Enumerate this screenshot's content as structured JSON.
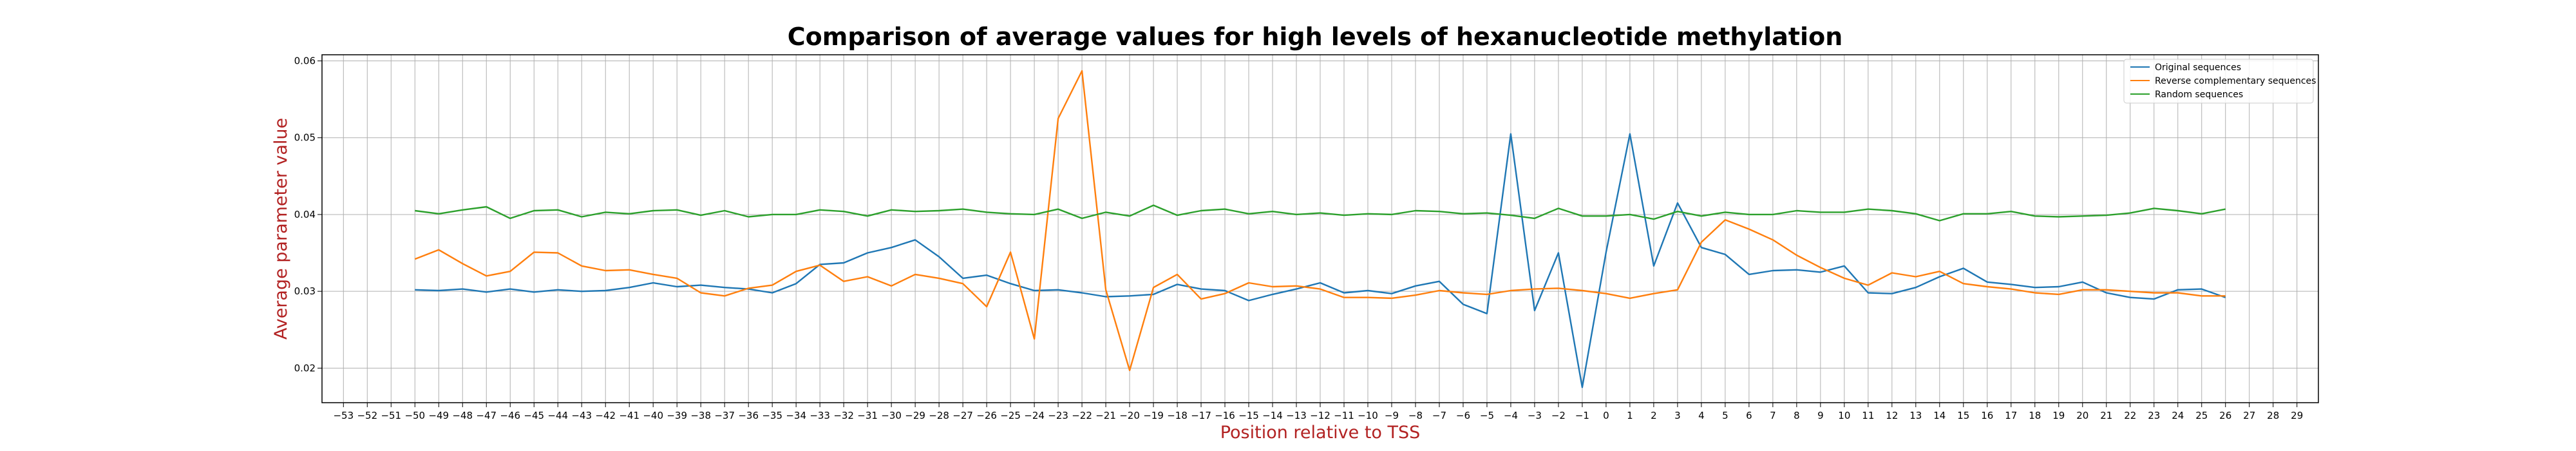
{
  "chart_data": {
    "type": "line",
    "title": "Comparison of average values for high levels of hexanucleotide methylation",
    "xlabel": "Position relative to TSS",
    "ylabel": "Average parameter value",
    "xlim": [
      -53.9,
      29.9
    ],
    "ylim": [
      0.0155,
      0.0608
    ],
    "x_ticks": [
      -53,
      -52,
      -51,
      -50,
      -49,
      -48,
      -47,
      -46,
      -45,
      -44,
      -43,
      -42,
      -41,
      -40,
      -39,
      -38,
      -37,
      -36,
      -35,
      -34,
      -33,
      -32,
      -31,
      -30,
      -29,
      -28,
      -27,
      -26,
      -25,
      -24,
      -23,
      -22,
      -21,
      -20,
      -19,
      -18,
      -17,
      -16,
      -15,
      -14,
      -13,
      -12,
      -11,
      -10,
      -9,
      -8,
      -7,
      -6,
      -5,
      -4,
      -3,
      -2,
      -1,
      0,
      1,
      2,
      3,
      4,
      5,
      6,
      7,
      8,
      9,
      10,
      11,
      12,
      13,
      14,
      15,
      16,
      17,
      18,
      19,
      20,
      21,
      22,
      23,
      24,
      25,
      26,
      27,
      28,
      29
    ],
    "y_ticks": [
      0.02,
      0.03,
      0.04,
      0.05,
      0.06
    ],
    "y_tick_labels": [
      "0.02",
      "0.03",
      "0.04",
      "0.05",
      "0.06"
    ],
    "grid": true,
    "legend_position": "top-right",
    "x": [
      -50,
      -49,
      -48,
      -47,
      -46,
      -45,
      -44,
      -43,
      -42,
      -41,
      -40,
      -39,
      -38,
      -37,
      -36,
      -35,
      -34,
      -33,
      -32,
      -31,
      -30,
      -29,
      -28,
      -27,
      -26,
      -25,
      -24,
      -23,
      -22,
      -21,
      -20,
      -19,
      -18,
      -17,
      -16,
      -15,
      -14,
      -13,
      -12,
      -11,
      -10,
      -9,
      -8,
      -7,
      -6,
      -5,
      -4,
      -3,
      -2,
      -1,
      0,
      1,
      2,
      3,
      4,
      5,
      6,
      7,
      8,
      9,
      10,
      11,
      12,
      13,
      14,
      15,
      16,
      17,
      18,
      19,
      20,
      21,
      22,
      23,
      24,
      25,
      26
    ],
    "series": [
      {
        "name": "Original sequences",
        "color": "#1f77b4",
        "values": [
          0.0302,
          0.0301,
          0.0303,
          0.0299,
          0.0303,
          0.0299,
          0.0302,
          0.03,
          0.0301,
          0.0305,
          0.0311,
          0.0306,
          0.0308,
          0.0305,
          0.0303,
          0.0298,
          0.031,
          0.0335,
          0.0337,
          0.035,
          0.0357,
          0.0367,
          0.0345,
          0.0317,
          0.0321,
          0.031,
          0.0301,
          0.0302,
          0.0298,
          0.0293,
          0.0294,
          0.0296,
          0.0309,
          0.0303,
          0.0301,
          0.0288,
          0.0296,
          0.0303,
          0.0311,
          0.0298,
          0.0301,
          0.0297,
          0.0307,
          0.0313,
          0.0283,
          0.0271,
          0.0505,
          0.0275,
          0.035,
          0.0175,
          0.0351,
          0.0505,
          0.0333,
          0.0415,
          0.0357,
          0.0348,
          0.0322,
          0.0327,
          0.0328,
          0.0325,
          0.0333,
          0.0298,
          0.0297,
          0.0305,
          0.0319,
          0.033,
          0.0312,
          0.0309,
          0.0305,
          0.0306,
          0.0312,
          0.0298,
          0.0292,
          0.029,
          0.0302,
          0.0303,
          0.0292
        ]
      },
      {
        "name": "Reverse complementary sequences",
        "color": "#ff7f0e",
        "values": [
          0.0342,
          0.0354,
          0.0336,
          0.032,
          0.0326,
          0.0351,
          0.035,
          0.0333,
          0.0327,
          0.0328,
          0.0322,
          0.0317,
          0.0298,
          0.0294,
          0.0304,
          0.0308,
          0.0326,
          0.0334,
          0.0313,
          0.0319,
          0.0307,
          0.0322,
          0.0317,
          0.031,
          0.028,
          0.0351,
          0.0238,
          0.0525,
          0.0587,
          0.0302,
          0.0197,
          0.0305,
          0.0322,
          0.029,
          0.0297,
          0.0311,
          0.0306,
          0.0307,
          0.0303,
          0.0292,
          0.0292,
          0.0291,
          0.0295,
          0.0301,
          0.0298,
          0.0296,
          0.0301,
          0.0303,
          0.0304,
          0.0301,
          0.0297,
          0.0291,
          0.0297,
          0.0302,
          0.0364,
          0.0393,
          0.0381,
          0.0367,
          0.0347,
          0.0331,
          0.0317,
          0.0308,
          0.0324,
          0.0319,
          0.0326,
          0.031,
          0.0306,
          0.0303,
          0.0298,
          0.0296,
          0.0302,
          0.0302,
          0.03,
          0.0298,
          0.0298,
          0.0294,
          0.0294
        ]
      },
      {
        "name": "Random sequences",
        "color": "#2ca02c",
        "values": [
          0.0405,
          0.0401,
          0.0406,
          0.041,
          0.0395,
          0.0405,
          0.0406,
          0.0397,
          0.0403,
          0.0401,
          0.0405,
          0.0406,
          0.0399,
          0.0405,
          0.0397,
          0.04,
          0.04,
          0.0406,
          0.0404,
          0.0398,
          0.0406,
          0.0404,
          0.0405,
          0.0407,
          0.0403,
          0.0401,
          0.04,
          0.0407,
          0.0395,
          0.0403,
          0.0398,
          0.0412,
          0.0399,
          0.0405,
          0.0407,
          0.0401,
          0.0404,
          0.04,
          0.0402,
          0.0399,
          0.0401,
          0.04,
          0.0405,
          0.0404,
          0.0401,
          0.0402,
          0.0399,
          0.0395,
          0.0408,
          0.0398,
          0.0398,
          0.04,
          0.0394,
          0.0404,
          0.0398,
          0.0403,
          0.04,
          0.04,
          0.0405,
          0.0403,
          0.0403,
          0.0407,
          0.0405,
          0.0401,
          0.0392,
          0.0401,
          0.0401,
          0.0404,
          0.0398,
          0.0397,
          0.0398,
          0.0399,
          0.0402,
          0.0408,
          0.0405,
          0.0401,
          0.0407
        ]
      }
    ]
  }
}
